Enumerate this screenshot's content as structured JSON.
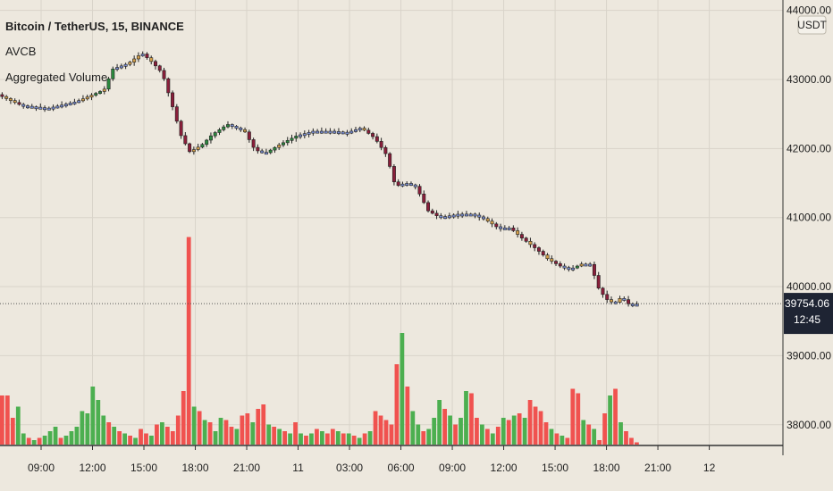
{
  "chart_data": {
    "type": "candlestick-volume",
    "title": "Bitcoin / TetherUS, 15, BINANCE",
    "indicators": [
      "AVCB",
      "Aggregated Volume"
    ],
    "currency_badge": "USDT",
    "price_axis": {
      "ticks": [
        "44000.00",
        "43000.00",
        "42000.00",
        "41000.00",
        "40000.00",
        "39000.00",
        "38000.00"
      ],
      "range": [
        37700,
        44150
      ]
    },
    "last_price": "39754.06",
    "countdown": "12:45",
    "time_axis": [
      "09:00",
      "12:00",
      "15:00",
      "18:00",
      "21:00",
      "11",
      "03:00",
      "06:00",
      "09:00",
      "12:00",
      "15:00",
      "18:00",
      "21:00",
      "12"
    ],
    "time_range": {
      "start_hour": 6.6,
      "end_hour": 52.3
    },
    "price_path": [
      [
        6.6,
        42780
      ],
      [
        8.0,
        42620
      ],
      [
        9.5,
        42580
      ],
      [
        11.2,
        42680
      ],
      [
        12.8,
        42850
      ],
      [
        13.3,
        43150
      ],
      [
        14.2,
        43230
      ],
      [
        15.0,
        43380
      ],
      [
        15.6,
        43250
      ],
      [
        16.2,
        43090
      ],
      [
        16.8,
        42600
      ],
      [
        17.3,
        42180
      ],
      [
        17.8,
        41950
      ],
      [
        18.5,
        42050
      ],
      [
        19.1,
        42200
      ],
      [
        20.0,
        42350
      ],
      [
        21.0,
        42250
      ],
      [
        21.6,
        41980
      ],
      [
        22.2,
        41930
      ],
      [
        23.0,
        42050
      ],
      [
        24.0,
        42180
      ],
      [
        25.0,
        42250
      ],
      [
        26.0,
        42250
      ],
      [
        27.0,
        42230
      ],
      [
        27.8,
        42300
      ],
      [
        28.6,
        42150
      ],
      [
        29.3,
        41900
      ],
      [
        29.8,
        41450
      ],
      [
        30.4,
        41500
      ],
      [
        31.0,
        41450
      ],
      [
        31.7,
        41100
      ],
      [
        32.4,
        41000
      ],
      [
        33.5,
        41050
      ],
      [
        34.3,
        41050
      ],
      [
        35.0,
        40980
      ],
      [
        35.8,
        40850
      ],
      [
        36.5,
        40850
      ],
      [
        37.2,
        40700
      ],
      [
        38.0,
        40550
      ],
      [
        38.7,
        40400
      ],
      [
        39.4,
        40300
      ],
      [
        40.0,
        40250
      ],
      [
        40.7,
        40330
      ],
      [
        41.2,
        40320
      ],
      [
        41.7,
        39950
      ],
      [
        42.2,
        39800
      ],
      [
        42.6,
        39760
      ],
      [
        43.0,
        39850
      ],
      [
        43.4,
        39750
      ],
      [
        43.9,
        39740
      ]
    ],
    "volume": {
      "range_max": 100,
      "values": [
        22,
        22,
        12,
        17,
        5,
        3,
        2,
        3,
        4,
        6,
        8,
        3,
        4,
        6,
        8,
        15,
        14,
        26,
        20,
        13,
        10,
        8,
        6,
        5,
        4,
        3,
        7,
        5,
        4,
        9,
        10,
        8,
        6,
        13,
        24,
        93,
        17,
        15,
        11,
        10,
        6,
        12,
        11,
        8,
        7,
        13,
        14,
        10,
        16,
        18,
        9,
        8,
        7,
        6,
        5,
        10,
        5,
        4,
        5,
        7,
        6,
        5,
        7,
        6,
        5,
        5,
        4,
        3,
        5,
        6,
        15,
        13,
        11,
        9,
        36,
        50,
        26,
        15,
        9,
        6,
        7,
        12,
        20,
        16,
        13,
        9,
        12,
        24,
        23,
        12,
        9,
        7,
        5,
        8,
        12,
        11,
        13,
        14,
        12,
        20,
        17,
        15,
        10,
        7,
        5,
        4,
        3,
        25,
        23,
        11,
        9,
        7,
        2,
        14,
        22,
        25,
        10,
        6,
        3,
        1
      ],
      "directions": [
        "d",
        "d",
        "d",
        "u",
        "u",
        "d",
        "u",
        "d",
        "u",
        "u",
        "u",
        "d",
        "u",
        "u",
        "u",
        "u",
        "u",
        "u",
        "u",
        "u",
        "d",
        "u",
        "d",
        "u",
        "d",
        "u",
        "d",
        "d",
        "u",
        "d",
        "u",
        "d",
        "d",
        "d",
        "d",
        "d",
        "u",
        "d",
        "u",
        "d",
        "u",
        "u",
        "d",
        "d",
        "u",
        "d",
        "d",
        "u",
        "d",
        "d",
        "u",
        "d",
        "u",
        "d",
        "u",
        "d",
        "u",
        "d",
        "u",
        "d",
        "u",
        "d",
        "d",
        "u",
        "d",
        "u",
        "d",
        "u",
        "d",
        "u",
        "d",
        "d",
        "d",
        "d",
        "d",
        "u",
        "d",
        "u",
        "u",
        "d",
        "u",
        "u",
        "u",
        "d",
        "u",
        "d",
        "u",
        "u",
        "d",
        "d",
        "u",
        "d",
        "u",
        "d",
        "u",
        "d",
        "u",
        "d",
        "u",
        "d",
        "d",
        "d",
        "d",
        "u",
        "d",
        "u",
        "d",
        "d",
        "d",
        "u",
        "d",
        "u",
        "d",
        "d",
        "u",
        "d",
        "u",
        "d",
        "d",
        "d"
      ]
    },
    "colors": {
      "background": "#ede8de",
      "grid": "#d9d4ca",
      "up": "#4caf50",
      "down": "#f0524f",
      "candle_up": "#2b8a3e",
      "candle_down": "#8a1e3a",
      "candle_neutral": "#d4a04a",
      "candle_small": "#7a8fd6",
      "price_label_bg": "#1e2433"
    }
  }
}
